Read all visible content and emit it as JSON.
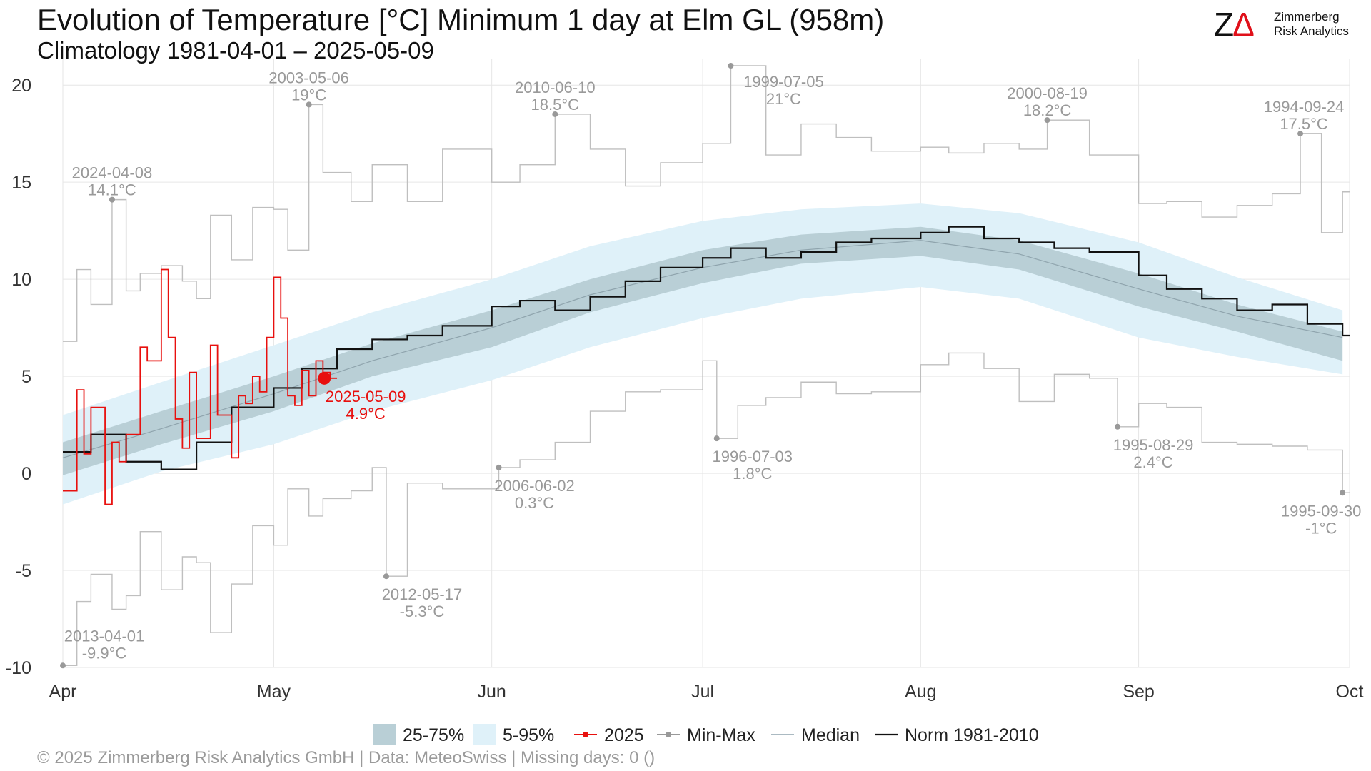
{
  "title": "Evolution of Temperature [°C] Minimum 1 day at Elm  GL (958m)",
  "subtitle": "Climatology 1981-04-01 – 2025-05-09",
  "logo": {
    "line1": "Zimmerberg",
    "line2": "Risk Analytics"
  },
  "footer": "©  2025 Zimmerberg Risk Analytics GmbH | Data: MeteoSwiss | Missing days: 0 ()",
  "colors": {
    "band_25_75": "#b9cfd6",
    "band_5_95": "#dff1f9",
    "current_year": "#e8100e",
    "minmax": "#bfbfbf",
    "median": "#8fa4ad",
    "norm": "#111111",
    "annotation": "#999999"
  },
  "chart_data": {
    "type": "line",
    "x_axis": {
      "range": [
        "2025-04-01",
        "2025-10-01"
      ],
      "ticks": [
        "Apr",
        "May",
        "Jun",
        "Jul",
        "Aug",
        "Sep",
        "Oct"
      ]
    },
    "y_axis": {
      "range": [
        -10,
        21
      ],
      "ticks": [
        "20",
        "15",
        "10",
        "5",
        "0",
        "-5",
        "-10"
      ]
    },
    "grid": true,
    "legend_position": "bottom",
    "legend": [
      "25-75%",
      "5-95%",
      "2025",
      "Min-Max",
      "Median",
      "Norm 1981-2010"
    ],
    "series": [
      {
        "name": "25-75%",
        "x": [
          "04-01",
          "04-15",
          "05-01",
          "05-15",
          "06-01",
          "06-15",
          "07-01",
          "07-15",
          "08-01",
          "08-15",
          "09-01",
          "09-15",
          "09-30"
        ],
        "lower": [
          -0.1,
          1.5,
          3.2,
          5.0,
          6.5,
          8.3,
          9.8,
          10.8,
          11.2,
          10.5,
          8.6,
          7.3,
          5.8
        ],
        "upper": [
          1.6,
          3.2,
          5.0,
          6.7,
          8.4,
          10.0,
          11.5,
          12.3,
          12.7,
          12.0,
          10.3,
          8.7,
          7.3
        ]
      },
      {
        "name": "5-95%",
        "x": [
          "04-01",
          "04-15",
          "05-01",
          "05-15",
          "06-01",
          "06-15",
          "07-01",
          "07-15",
          "08-01",
          "08-15",
          "09-01",
          "09-15",
          "09-30"
        ],
        "lower": [
          -1.6,
          0.1,
          1.5,
          3.2,
          4.8,
          6.5,
          8.0,
          9.0,
          9.6,
          9.0,
          7.0,
          6.0,
          5.1
        ],
        "upper": [
          3.0,
          4.7,
          6.6,
          8.3,
          10.0,
          11.7,
          13.0,
          13.6,
          13.9,
          13.4,
          11.9,
          10.1,
          8.4
        ]
      },
      {
        "name": "Median",
        "x": [
          "04-01",
          "04-15",
          "05-01",
          "05-15",
          "06-01",
          "06-15",
          "07-01",
          "07-15",
          "08-01",
          "08-15",
          "09-01",
          "09-15",
          "09-30"
        ],
        "values": [
          0.8,
          2.3,
          4.1,
          5.8,
          7.5,
          9.2,
          10.6,
          11.5,
          12.0,
          11.3,
          9.5,
          8.1,
          7.0
        ]
      },
      {
        "name": "Norm 1981-2010",
        "x": [
          "04-01",
          "04-05",
          "04-10",
          "04-15",
          "04-20",
          "04-25",
          "05-01",
          "05-05",
          "05-10",
          "05-15",
          "05-20",
          "05-25",
          "06-01",
          "06-05",
          "06-10",
          "06-15",
          "06-20",
          "06-25",
          "07-01",
          "07-05",
          "07-10",
          "07-15",
          "07-20",
          "07-25",
          "08-01",
          "08-05",
          "08-10",
          "08-15",
          "08-20",
          "08-25",
          "09-01",
          "09-05",
          "09-10",
          "09-15",
          "09-20",
          "09-25",
          "09-30"
        ],
        "values": [
          1.1,
          2.0,
          0.6,
          0.2,
          1.6,
          3.4,
          4.4,
          5.4,
          6.4,
          6.9,
          7.1,
          7.6,
          8.6,
          8.9,
          8.4,
          9.1,
          9.9,
          10.6,
          11.1,
          11.6,
          11.1,
          11.4,
          11.9,
          12.1,
          12.4,
          12.7,
          12.1,
          11.9,
          11.6,
          11.4,
          10.2,
          9.5,
          9.0,
          8.4,
          8.7,
          7.7,
          7.1
        ]
      },
      {
        "name": "2025",
        "x": [
          "04-01",
          "04-03",
          "04-04",
          "04-05",
          "04-07",
          "04-08",
          "04-09",
          "04-10",
          "04-12",
          "04-13",
          "04-15",
          "04-16",
          "04-17",
          "04-18",
          "04-19",
          "04-20",
          "04-22",
          "04-23",
          "04-25",
          "04-26",
          "04-27",
          "04-28",
          "04-29",
          "04-30",
          "05-01",
          "05-02",
          "05-03",
          "05-04",
          "05-05",
          "05-06",
          "05-07",
          "05-08",
          "05-09"
        ],
        "values": [
          -0.9,
          4.3,
          1.0,
          3.4,
          -1.6,
          1.6,
          0.6,
          2.0,
          6.5,
          5.8,
          10.5,
          7.0,
          2.8,
          1.3,
          5.2,
          1.8,
          6.6,
          3.0,
          0.8,
          4.0,
          3.6,
          5.0,
          4.2,
          7.0,
          10.1,
          8.0,
          4.0,
          3.5,
          5.3,
          4.0,
          5.8,
          5.2,
          4.9
        ]
      },
      {
        "name": "Max",
        "x": [
          "04-01",
          "04-03",
          "04-05",
          "04-08",
          "04-10",
          "04-12",
          "04-15",
          "04-18",
          "04-20",
          "04-22",
          "04-25",
          "04-28",
          "05-01",
          "05-03",
          "05-06",
          "05-08",
          "05-12",
          "05-15",
          "05-20",
          "05-25",
          "06-01",
          "06-05",
          "06-10",
          "06-15",
          "06-20",
          "06-25",
          "07-01",
          "07-05",
          "07-10",
          "07-15",
          "07-20",
          "07-25",
          "08-01",
          "08-05",
          "08-10",
          "08-15",
          "08-19",
          "08-25",
          "09-01",
          "09-05",
          "09-10",
          "09-15",
          "09-20",
          "09-24",
          "09-27",
          "09-30"
        ],
        "values": [
          6.8,
          10.5,
          8.7,
          14.1,
          9.4,
          10.3,
          10.7,
          9.9,
          9.0,
          13.3,
          11.0,
          13.7,
          13.6,
          11.5,
          19.0,
          15.5,
          14.0,
          15.9,
          14.0,
          16.7,
          15.0,
          15.9,
          18.5,
          16.7,
          14.8,
          16.0,
          17.0,
          21.0,
          16.4,
          18.0,
          17.3,
          16.6,
          16.8,
          16.5,
          17.0,
          16.7,
          18.2,
          16.4,
          13.9,
          14.0,
          13.2,
          13.8,
          14.4,
          17.5,
          12.4,
          14.5
        ]
      },
      {
        "name": "Min",
        "x": [
          "04-01",
          "04-03",
          "04-05",
          "04-08",
          "04-10",
          "04-12",
          "04-15",
          "04-18",
          "04-20",
          "04-22",
          "04-25",
          "04-28",
          "05-01",
          "05-03",
          "05-06",
          "05-08",
          "05-12",
          "05-15",
          "05-17",
          "05-20",
          "05-25",
          "06-02",
          "06-05",
          "06-10",
          "06-15",
          "06-20",
          "06-25",
          "07-01",
          "07-03",
          "07-06",
          "07-10",
          "07-15",
          "07-20",
          "07-25",
          "08-01",
          "08-05",
          "08-10",
          "08-15",
          "08-20",
          "08-25",
          "08-29",
          "09-01",
          "09-05",
          "09-10",
          "09-15",
          "09-20",
          "09-25",
          "09-30"
        ],
        "values": [
          -9.9,
          -6.6,
          -5.2,
          -7.0,
          -6.3,
          -3.0,
          -6.0,
          -4.3,
          -4.6,
          -8.2,
          -5.7,
          -2.7,
          -3.7,
          -0.8,
          -2.2,
          -1.3,
          -0.9,
          0.3,
          -5.3,
          -0.5,
          -0.8,
          0.3,
          0.7,
          1.6,
          3.2,
          4.2,
          4.3,
          5.8,
          1.8,
          3.5,
          3.9,
          4.7,
          4.1,
          4.2,
          5.6,
          6.2,
          5.4,
          3.7,
          5.1,
          4.9,
          2.4,
          3.6,
          3.4,
          1.6,
          1.5,
          1.4,
          1.2,
          -1.0
        ]
      }
    ],
    "annotations": [
      {
        "date": "2013-04-01",
        "label": "-9.9°C",
        "x": "04-01",
        "y": -9.9,
        "kind": "min"
      },
      {
        "date": "2024-04-08",
        "label": "14.1°C",
        "x": "04-08",
        "y": 14.1,
        "kind": "max"
      },
      {
        "date": "2003-05-06",
        "label": "19°C",
        "x": "05-06",
        "y": 19.0,
        "kind": "max"
      },
      {
        "date": "2012-05-17",
        "label": "-5.3°C",
        "x": "05-17",
        "y": -5.3,
        "kind": "min"
      },
      {
        "date": "2006-06-02",
        "label": "0.3°C",
        "x": "06-02",
        "y": 0.3,
        "kind": "min"
      },
      {
        "date": "2010-06-10",
        "label": "18.5°C",
        "x": "06-10",
        "y": 18.5,
        "kind": "max"
      },
      {
        "date": "1999-07-05",
        "label": "21°C",
        "x": "07-05",
        "y": 21.0,
        "kind": "max"
      },
      {
        "date": "1996-07-03",
        "label": "1.8°C",
        "x": "07-03",
        "y": 1.8,
        "kind": "min"
      },
      {
        "date": "2000-08-19",
        "label": "18.2°C",
        "x": "08-19",
        "y": 18.2,
        "kind": "max"
      },
      {
        "date": "1995-08-29",
        "label": "2.4°C",
        "x": "08-29",
        "y": 2.4,
        "kind": "min"
      },
      {
        "date": "1994-09-24",
        "label": "17.5°C",
        "x": "09-24",
        "y": 17.5,
        "kind": "max"
      },
      {
        "date": "1995-09-30",
        "label": "-1°C",
        "x": "09-30",
        "y": -1.0,
        "kind": "min"
      },
      {
        "date": "2025-05-09",
        "label": "4.9°C",
        "x": "05-09",
        "y": 4.9,
        "kind": "current"
      }
    ]
  }
}
